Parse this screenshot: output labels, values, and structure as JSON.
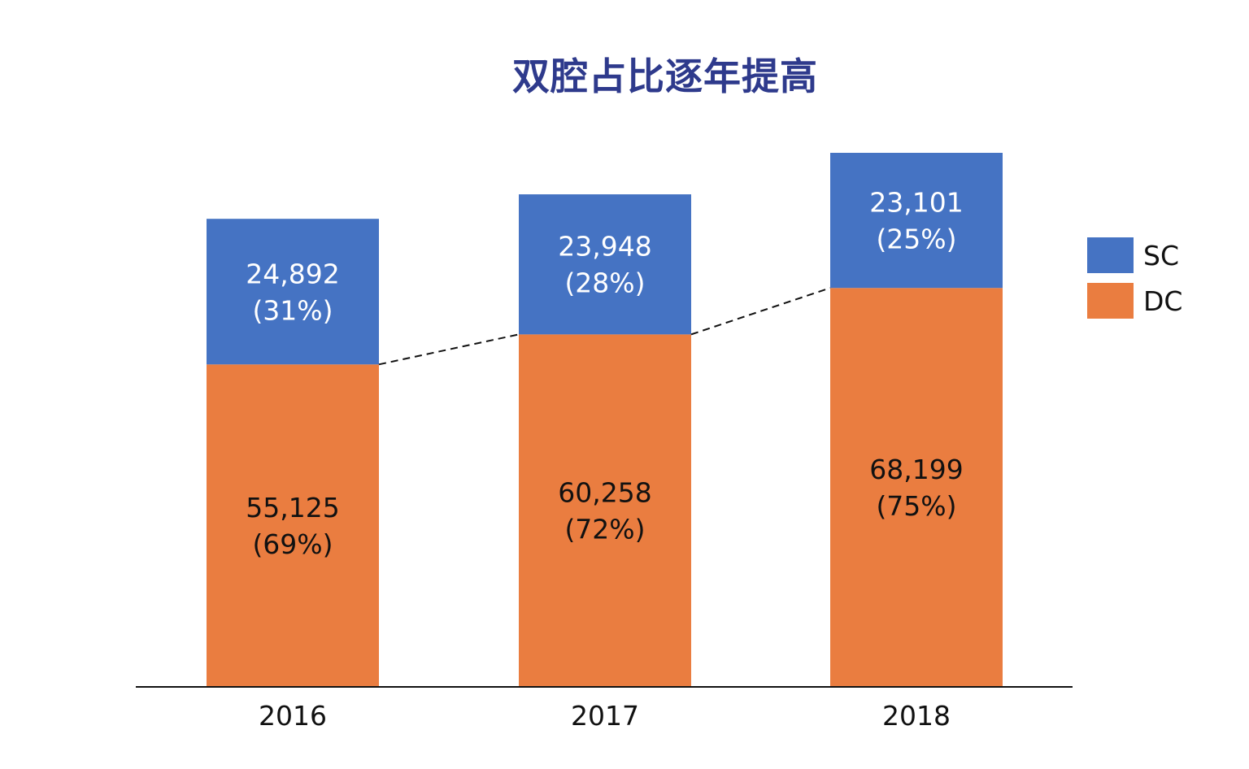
{
  "chart_data": {
    "type": "bar",
    "stacked": true,
    "title": "双腔占比逐年提高",
    "xlabel": "",
    "ylabel": "",
    "categories": [
      "2016",
      "2017",
      "2018"
    ],
    "series": [
      {
        "name": "DC",
        "color": "#ea7d40",
        "label_color": "#111111",
        "values": [
          55125,
          60258,
          68199
        ],
        "value_labels": [
          "55,125",
          "60,258",
          "68,199"
        ],
        "percent_labels": [
          "(69%)",
          "(72%)",
          "(75%)"
        ]
      },
      {
        "name": "SC",
        "color": "#4573c3",
        "label_color": "#ffffff",
        "values": [
          24892,
          23948,
          23101
        ],
        "value_labels": [
          "24,892",
          "23,948",
          "23,101"
        ],
        "percent_labels": [
          "(31%)",
          "(28%)",
          "(25%)"
        ]
      }
    ],
    "ylim": [
      0,
      91300
    ],
    "grid": false,
    "axis_line_color": "#111111",
    "connector_line": {
      "style": "dashed",
      "color": "#111111",
      "between": "top of DC segments"
    },
    "legend": {
      "position": "right",
      "entries": [
        {
          "label": "SC",
          "color": "#4573c3"
        },
        {
          "label": "DC",
          "color": "#ea7d40"
        }
      ]
    }
  }
}
